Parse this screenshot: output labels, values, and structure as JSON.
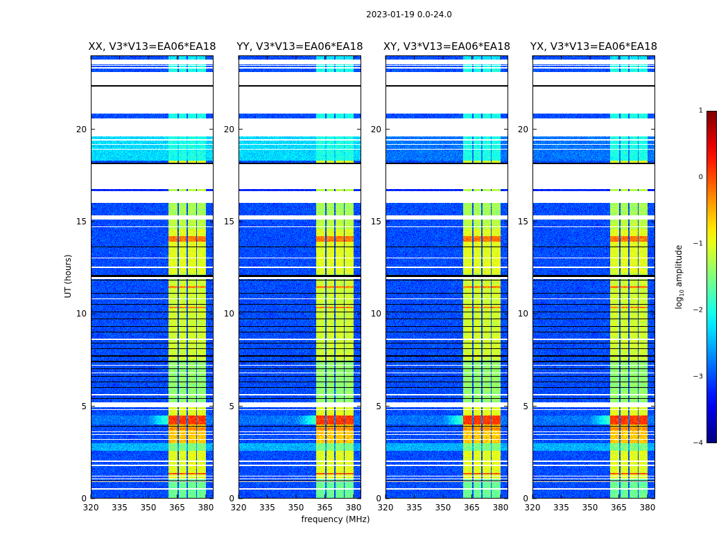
{
  "chart_data": {
    "type": "heatmap",
    "title": "2023-01-19 0.0-24.0",
    "panels": [
      {
        "title": "XX, V3*V13=EA06*EA18",
        "cross": false
      },
      {
        "title": "YY, V3*V13=EA06*EA18",
        "cross": false
      },
      {
        "title": "XY, V3*V13=EA06*EA18",
        "cross": true
      },
      {
        "title": "YX, V3*V13=EA06*EA18",
        "cross": true
      }
    ],
    "xlabel": "frequency (MHz)",
    "ylabel": "UT (hours)",
    "xlim": [
      320,
      384
    ],
    "ylim": [
      0,
      24
    ],
    "xticks": [
      "320",
      "335",
      "350",
      "365",
      "380"
    ],
    "xtick_values": [
      320,
      335,
      350,
      365,
      380
    ],
    "yticks": [
      "0",
      "5",
      "10",
      "15",
      "20"
    ],
    "ytick_values": [
      0,
      5,
      10,
      15,
      20
    ],
    "colorbar": {
      "label_prefix": "log",
      "label_sub": "10",
      "label_suffix": " amplitude",
      "range": [
        -4,
        1
      ],
      "ticks": [
        "1",
        "0",
        "−1",
        "−2",
        "−3",
        "−4"
      ],
      "tick_values": [
        1,
        0,
        -1,
        -2,
        -3,
        -4
      ],
      "colormap": "jet"
    },
    "sub_bands_mhz": [
      [
        360.5,
        365.3
      ],
      [
        365.8,
        370.0
      ],
      [
        370.5,
        375.0
      ],
      [
        375.5,
        380.0
      ]
    ],
    "segments_log_amp": [
      {
        "t": [
          23.77,
          24
        ],
        "bg": -3,
        "band": -2.2
      },
      {
        "t": [
          23.1,
          23.5
        ],
        "bg": -3,
        "band": -2
      },
      {
        "t": [
          20.6,
          20.85
        ],
        "bg": -3,
        "band": -2
      },
      {
        "t": [
          18.3,
          19.6
        ],
        "bg": -2.3,
        "bg_cross": -2.8,
        "band": -2.0
      },
      {
        "t": [
          18.15,
          18.3
        ],
        "bg": -3,
        "band": -1.0
      },
      {
        "t": [
          16.65,
          16.75
        ],
        "bg": -3.2,
        "band": -1.2
      },
      {
        "t": [
          15.35,
          16
        ],
        "bg": -3,
        "band": -1.3
      },
      {
        "t": [
          14.6,
          15.1
        ],
        "bg": -3,
        "band": -1.2
      },
      {
        "t": [
          12.2,
          14.6
        ],
        "bg": -3,
        "band": -1.0
      },
      {
        "t": [
          11.8,
          12.2
        ],
        "bg": -3,
        "band": -1.2
      },
      {
        "t": [
          7.5,
          11.8
        ],
        "bg": -3,
        "band": -1.1
      },
      {
        "t": [
          5.2,
          7.5
        ],
        "bg": -3,
        "band": -1.4
      },
      {
        "t": [
          4.5,
          4.95
        ],
        "bg": -3,
        "band": -1.0
      },
      {
        "t": [
          4.0,
          4.5
        ],
        "bg": -2.8,
        "band": 0.1
      },
      {
        "t": [
          3.0,
          4.0
        ],
        "bg": -3,
        "band": -0.6
      },
      {
        "t": [
          2.6,
          3.0
        ],
        "bg": -2.5,
        "band": -1.5
      },
      {
        "t": [
          1.1,
          2.6
        ],
        "bg": -3,
        "band": -1.0
      },
      {
        "t": [
          0,
          1.1
        ],
        "bg": -3,
        "band": -1.6
      }
    ],
    "hot_rows": [
      {
        "t": [
          1.3,
          1.4
        ],
        "band": 0
      },
      {
        "t": [
          13.9,
          14.2
        ],
        "band": -0.2
      },
      {
        "t": [
          10.3,
          10.4
        ],
        "band": -0.2
      },
      {
        "t": [
          11.4,
          11.5
        ],
        "band": -0.3
      },
      {
        "t": [
          3.7,
          3.85
        ],
        "band": -0.3
      }
    ],
    "white_rows": [
      [
        23.3,
        23.35
      ],
      [
        23.42,
        23.46
      ],
      [
        18.9,
        18.95
      ],
      [
        19.15,
        19.2
      ],
      [
        19.4,
        19.45
      ],
      [
        14.7,
        14.75
      ],
      [
        13.0,
        13.05
      ],
      [
        12.5,
        12.55
      ],
      [
        5.0,
        5.05
      ],
      [
        4.8,
        4.85
      ],
      [
        4.6,
        4.62
      ],
      [
        3.6,
        3.63
      ],
      [
        3.45,
        3.48
      ],
      [
        3.2,
        3.24
      ],
      [
        2.0,
        2.08
      ],
      [
        1.78,
        1.85
      ],
      [
        1.2,
        1.25
      ],
      [
        1.05,
        1.1
      ],
      [
        0.9,
        0.95
      ],
      [
        0.5,
        0.55
      ],
      [
        11.9,
        12.0
      ],
      [
        7.2,
        7.25
      ],
      [
        6.8,
        6.82
      ],
      [
        5.6,
        5.65
      ],
      [
        8.6,
        8.65
      ],
      [
        10.8,
        10.85
      ]
    ],
    "black_rows": [
      [
        22.3,
        22.4
      ],
      [
        18.12,
        18.17
      ],
      [
        13.6,
        13.65
      ],
      [
        12.0,
        12.1
      ],
      [
        11.8,
        11.85
      ],
      [
        11.1,
        11.14
      ],
      [
        10.9,
        10.93
      ],
      [
        10.5,
        10.55
      ],
      [
        10.1,
        10.13
      ],
      [
        9.7,
        9.74
      ],
      [
        9.3,
        9.33
      ],
      [
        9.0,
        9.05
      ],
      [
        8.8,
        8.83
      ],
      [
        8.4,
        8.45
      ],
      [
        8.1,
        8.13
      ],
      [
        7.7,
        7.75
      ],
      [
        7.4,
        7.45
      ],
      [
        7.0,
        7.05
      ],
      [
        6.6,
        6.65
      ],
      [
        6.3,
        6.33
      ],
      [
        6.0,
        6.05
      ],
      [
        5.8,
        5.83
      ],
      [
        5.4,
        5.45
      ],
      [
        0.95,
        0.98
      ],
      [
        3.9,
        3.93
      ]
    ]
  }
}
